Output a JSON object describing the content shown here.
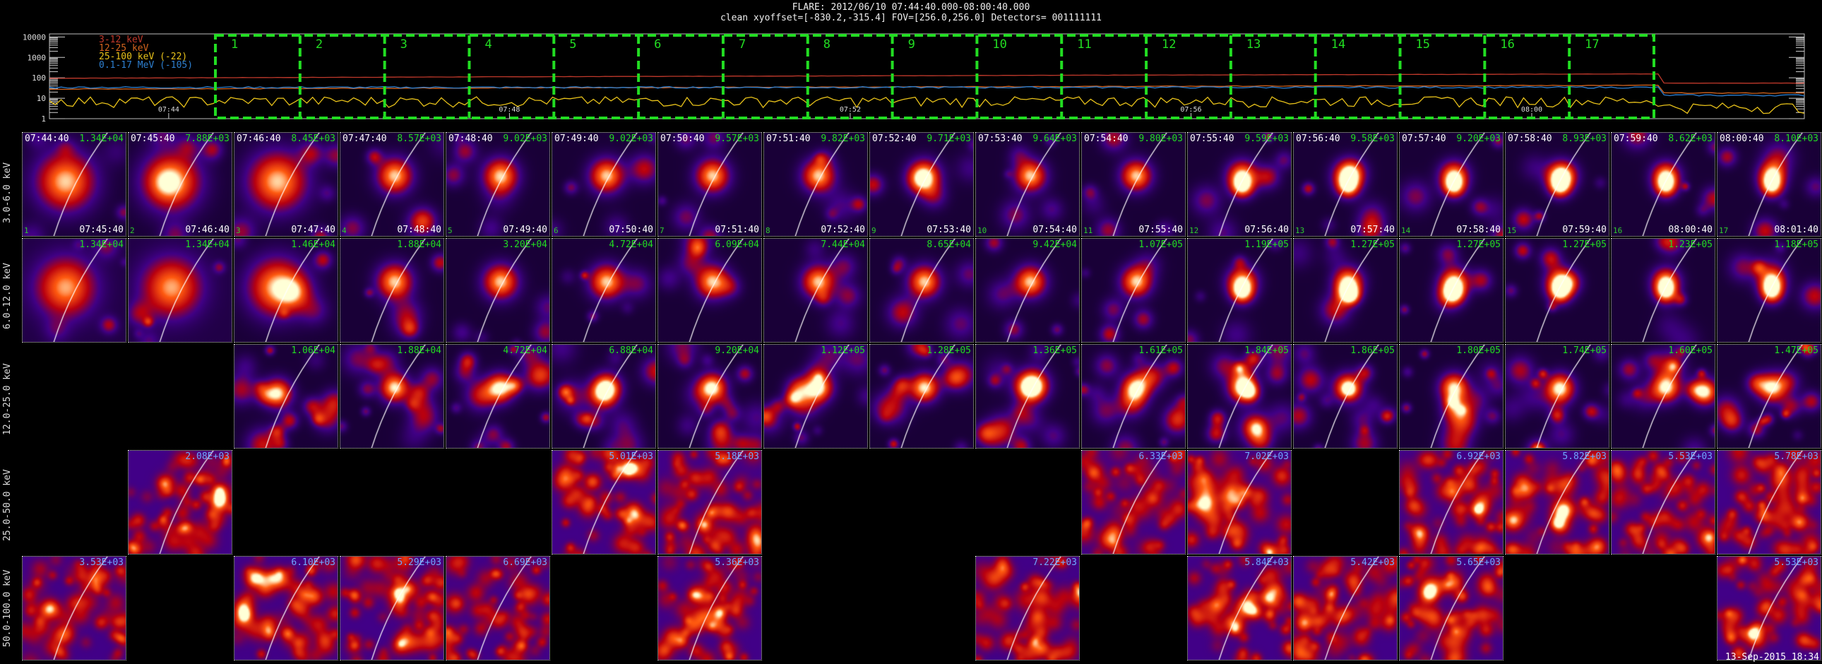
{
  "header": {
    "title": "FLARE: 2012/06/10 07:44:40.000-08:00:40.000",
    "subtitle": "clean     xyoffset=[-830.2,-315.4]   FOV=[256.0,256.0]    Detectors= 001111111"
  },
  "lightcurve": {
    "y_tick_labels": [
      "10000",
      "1000",
      "100",
      "10",
      "1"
    ],
    "x_tick_labels": [
      "07:44",
      "07:48",
      "07:52",
      "07:56",
      "08:00"
    ],
    "legend": [
      {
        "label": "3-12 keV",
        "color": "#c0392b"
      },
      {
        "label": "12-25 keV",
        "color": "#d4641e"
      },
      {
        "label": "25-100 keV (-22)",
        "color": "#e8c21a"
      },
      {
        "label": "0.1-17 MeV (-105)",
        "color": "#2d7fd0"
      }
    ],
    "intervals": [
      "1",
      "2",
      "3",
      "4",
      "5",
      "6",
      "7",
      "8",
      "9",
      "10",
      "11",
      "12",
      "13",
      "14",
      "15",
      "16",
      "17"
    ],
    "interval_color": "#22dd22"
  },
  "bands": [
    "3.0-6.0 keV",
    "6.0-12.0 keV",
    "12.0-25.0 keV",
    "25.0-50.0 keV",
    "50.0-100.0 keV"
  ],
  "start_times": [
    "07:44:40",
    "07:45:40",
    "07:46:40",
    "07:47:40",
    "07:48:40",
    "07:49:40",
    "07:50:40",
    "07:51:40",
    "07:52:40",
    "07:53:40",
    "07:54:40",
    "07:55:40",
    "07:56:40",
    "07:57:40",
    "07:58:40",
    "07:59:40",
    "08:00:40"
  ],
  "end_times": [
    "07:45:40",
    "07:46:40",
    "07:47:40",
    "07:48:40",
    "07:49:40",
    "07:50:40",
    "07:51:40",
    "07:52:40",
    "07:53:40",
    "07:54:40",
    "07:55:40",
    "07:56:40",
    "07:57:40",
    "07:58:40",
    "07:59:40",
    "08:00:40",
    "08:01:40"
  ],
  "rows": [
    {
      "values": [
        "1.34E+04",
        "7.88E+03",
        "8.45E+03",
        "8.57E+03",
        "9.02E+03",
        "9.02E+03",
        "9.57E+03",
        "9.82E+03",
        "9.71E+03",
        "9.64E+03",
        "9.80E+03",
        "9.59E+03",
        "9.58E+03",
        "9.20E+03",
        "8.93E+03",
        "8.62E+03",
        "8.10E+03"
      ],
      "value_color": "#22dd22"
    },
    {
      "values": [
        "1.34E+04",
        "1.34E+04",
        "1.46E+04",
        "1.88E+04",
        "3.20E+04",
        "4.72E+04",
        "6.09E+04",
        "7.44E+04",
        "8.65E+04",
        "9.42E+04",
        "1.07E+05",
        "1.19E+05",
        "1.27E+05",
        "1.27E+05",
        "1.27E+05",
        "1.23E+05",
        "1.18E+05"
      ],
      "value_color": "#22dd22"
    },
    {
      "values": [
        "",
        "",
        "1.06E+04",
        "1.88E+04",
        "4.72E+04",
        "6.88E+04",
        "9.20E+04",
        "1.12E+05",
        "1.28E+05",
        "1.36E+05",
        "1.61E+05",
        "1.84E+05",
        "1.86E+05",
        "1.80E+05",
        "1.74E+05",
        "1.60E+05",
        "1.47E+05"
      ],
      "value_color": "#22dd22"
    },
    {
      "values": [
        "",
        "2.08E+03",
        "",
        "",
        "",
        "5.01E+03",
        "5.18E+03",
        "",
        "",
        "",
        "6.33E+03",
        "7.02E+03",
        "",
        "6.92E+03",
        "5.82E+03",
        "5.53E+03",
        "5.78E+03"
      ],
      "value_color": "#6fa8ff"
    },
    {
      "values": [
        "3.53E+03",
        "",
        "6.10E+03",
        "5.29E+03",
        "6.69E+03",
        "",
        "5.36E+03",
        "",
        "",
        "7.22E+03",
        "",
        "5.84E+03",
        "5.42E+03",
        "5.65E+03",
        "",
        "",
        "5.53E+03"
      ],
      "value_color": "#6fa8ff"
    }
  ],
  "timestamp": "13-Sep-2015 18:34"
}
